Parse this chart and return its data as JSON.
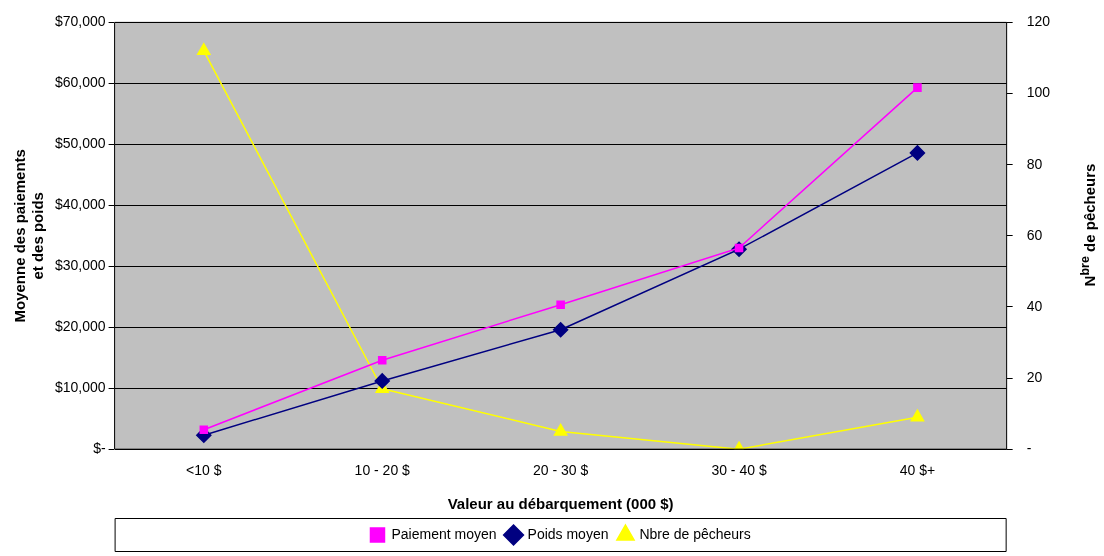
{
  "chart_data": {
    "type": "line",
    "xlabel": "Valeur au débarquement (000 $)",
    "ylabel": "Moyenne des paiements\net des poids",
    "y2label": "N$^{bre}$ de pêcheurs",
    "categories": [
      "<10 $",
      "10 - 20 $",
      "20 - 30 $",
      "30 - 40 $",
      "40 $+"
    ],
    "series": [
      {
        "name": "Paiement moyen",
        "color": "#ff00ff",
        "marker": "square",
        "values": [
          3200,
          14600,
          23700,
          33000,
          59300
        ]
      },
      {
        "name": "Poids moyen",
        "color": "#000080",
        "marker": "diamond",
        "values": [
          2300,
          11200,
          19600,
          32800,
          48600
        ]
      },
      {
        "name": "Nbre de pêcheurs",
        "color": "#ffff00",
        "marker": "triangle",
        "axis": "y2",
        "values": [
          112,
          17,
          5,
          0,
          9
        ]
      }
    ],
    "ylim": [
      0,
      70000
    ],
    "yticks": [
      {
        "value": 0,
        "label": "$-"
      },
      {
        "value": 10000,
        "label": "$10,000"
      },
      {
        "value": 20000,
        "label": "$20,000"
      },
      {
        "value": 30000,
        "label": "$30,000"
      },
      {
        "value": 40000,
        "label": "$40,000"
      },
      {
        "value": 50000,
        "label": "$50,000"
      },
      {
        "value": 60000,
        "label": "$60,000"
      },
      {
        "value": 70000,
        "label": "$70,000"
      }
    ],
    "y2lim": [
      0,
      120
    ],
    "y2ticks": [
      {
        "value": 0,
        "label": "-"
      },
      20,
      40,
      60,
      80,
      100,
      120
    ],
    "grid": "y",
    "legend": "bottom"
  }
}
